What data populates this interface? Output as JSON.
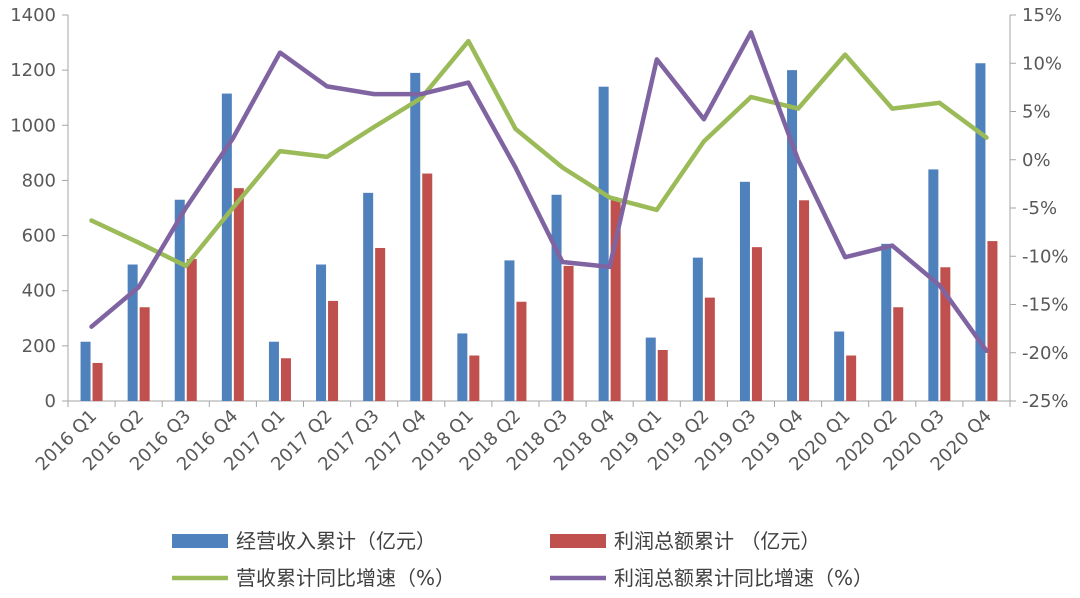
{
  "chart_data": {
    "type": "bar",
    "title": "",
    "xlabel": "",
    "categories": [
      "2016 Q1",
      "2016 Q2",
      "2016 Q3",
      "2016 Q4",
      "2017 Q1",
      "2017 Q2",
      "2017 Q3",
      "2017 Q4",
      "2018 Q1",
      "2018 Q2",
      "2018 Q3",
      "2018 Q4",
      "2019 Q1",
      "2019 Q2",
      "2019 Q3",
      "2019 Q4",
      "2020 Q1",
      "2020 Q2",
      "2020 Q3",
      "2020 Q4"
    ],
    "y_left": {
      "ylim": [
        0,
        1400
      ],
      "ticks": [
        "0",
        "200",
        "400",
        "600",
        "800",
        "1000",
        "1200",
        "1400"
      ],
      "tick_values": [
        0,
        200,
        400,
        600,
        800,
        1000,
        1200,
        1400
      ]
    },
    "y_right": {
      "ylim": [
        -25,
        15
      ],
      "ticks": [
        "-25%",
        "-20%",
        "-15%",
        "-10%",
        "-5%",
        "0%",
        "5%",
        "10%",
        "15%"
      ],
      "tick_values": [
        -25,
        -20,
        -15,
        -10,
        -5,
        0,
        5,
        10,
        15
      ]
    },
    "series": [
      {
        "name": "经营收入累计（亿元）",
        "kind": "bar",
        "axis": "left",
        "color": "#4f81bd",
        "values": [
          215,
          495,
          730,
          1115,
          215,
          495,
          755,
          1190,
          245,
          510,
          748,
          1140,
          230,
          520,
          795,
          1200,
          252,
          570,
          840,
          1225
        ]
      },
      {
        "name": "利润总额累计 （亿元）",
        "kind": "bar",
        "axis": "left",
        "color": "#c0504d",
        "values": [
          138,
          340,
          515,
          772,
          155,
          363,
          555,
          825,
          165,
          360,
          490,
          735,
          185,
          375,
          558,
          728,
          165,
          340,
          485,
          580
        ]
      },
      {
        "name": "营收累计同比增速（%）",
        "kind": "line",
        "axis": "right",
        "color": "#9bbb59",
        "values": [
          -6.3,
          -8.6,
          -11.0,
          -5.0,
          0.9,
          0.3,
          3.4,
          6.4,
          12.3,
          3.2,
          -0.8,
          -3.9,
          -5.2,
          1.9,
          6.5,
          5.3,
          10.9,
          5.3,
          5.9,
          2.3
        ]
      },
      {
        "name": "利润总额累计同比增速（%）",
        "kind": "line",
        "axis": "right",
        "color": "#8064a2",
        "values": [
          -17.3,
          -13.2,
          -5.0,
          2.2,
          11.1,
          7.6,
          6.8,
          6.8,
          8.0,
          -0.8,
          -10.6,
          -11.1,
          10.4,
          4.2,
          13.2,
          0.0,
          -10.1,
          -8.9,
          -13.0,
          -19.8
        ]
      }
    ]
  }
}
